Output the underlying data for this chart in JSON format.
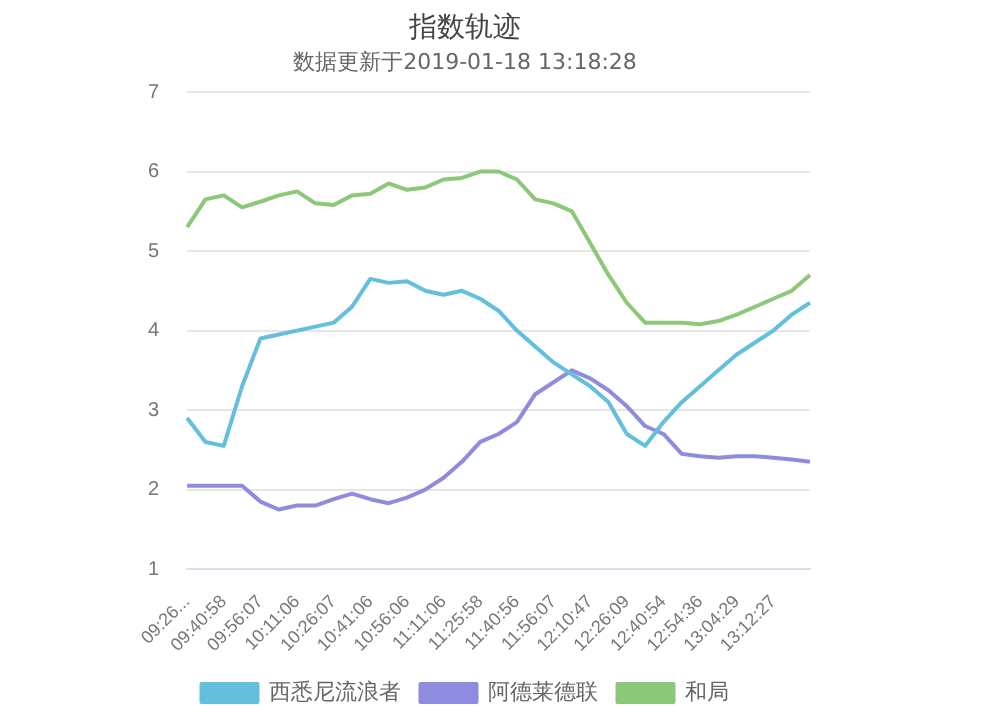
{
  "chart_data": {
    "type": "line",
    "title": "指数轨迹",
    "subtitle": "数据更新于2019-01-18 13:18:28",
    "categories": [
      "09:26...",
      null,
      "09:40:58",
      null,
      "09:56:07",
      null,
      "10:11:06",
      null,
      "10:26:07",
      null,
      "10:41:06",
      null,
      "10:56:06",
      null,
      "11:11:06",
      null,
      "11:25:58",
      null,
      "11:40:56",
      null,
      "11:56:07",
      null,
      "12:10:47",
      null,
      "12:26:09",
      null,
      "12:40:54",
      null,
      "12:54:36",
      null,
      "13:04:29",
      null,
      "13:12:27",
      null,
      null
    ],
    "series": [
      {
        "name": "西悉尼流浪者",
        "color": "#63bfdc",
        "values": [
          2.9,
          2.6,
          2.55,
          3.3,
          3.9,
          3.95,
          4.0,
          4.05,
          4.1,
          4.3,
          4.65,
          4.6,
          4.62,
          4.5,
          4.45,
          4.5,
          4.4,
          4.25,
          4.0,
          3.8,
          3.6,
          3.45,
          3.3,
          3.1,
          2.7,
          2.55,
          2.85,
          3.1,
          3.3,
          3.5,
          3.7,
          3.85,
          4.0,
          4.2,
          4.35
        ]
      },
      {
        "name": "阿德莱德联",
        "color": "#8f8ce0",
        "values": [
          2.05,
          2.05,
          2.05,
          2.05,
          1.85,
          1.75,
          1.8,
          1.8,
          1.88,
          1.95,
          1.88,
          1.83,
          1.9,
          2.0,
          2.15,
          2.35,
          2.6,
          2.7,
          2.85,
          3.2,
          3.35,
          3.5,
          3.4,
          3.25,
          3.05,
          2.8,
          2.7,
          2.45,
          2.42,
          2.4,
          2.42,
          2.42,
          2.4,
          2.38,
          2.35
        ]
      },
      {
        "name": "和局",
        "color": "#8cc87a",
        "values": [
          5.3,
          5.65,
          5.7,
          5.55,
          5.62,
          5.7,
          5.75,
          5.6,
          5.58,
          5.7,
          5.72,
          5.85,
          5.77,
          5.8,
          5.9,
          5.92,
          6.0,
          6.0,
          5.9,
          5.65,
          5.6,
          5.5,
          5.1,
          4.7,
          4.35,
          4.1,
          4.1,
          4.1,
          4.08,
          4.12,
          4.2,
          4.3,
          4.4,
          4.5,
          4.7
        ]
      }
    ],
    "ylim": [
      1,
      7
    ],
    "yticks": [
      1,
      2,
      3,
      4,
      5,
      6,
      7
    ],
    "grid": "y",
    "legend": "bottom",
    "marker": "none",
    "line_style": "solid"
  }
}
